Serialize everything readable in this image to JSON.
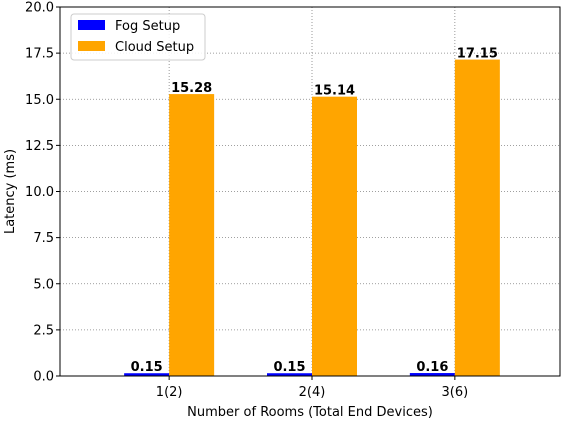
{
  "chart_data": {
    "type": "bar",
    "categories": [
      "1(2)",
      "2(4)",
      "3(6)"
    ],
    "series": [
      {
        "name": "Fog Setup",
        "color": "#0000ff",
        "values": [
          0.15,
          0.15,
          0.16
        ],
        "labels": [
          "0.15",
          "0.15",
          "0.16"
        ]
      },
      {
        "name": "Cloud Setup",
        "color": "#ffa500",
        "values": [
          15.28,
          15.14,
          17.15
        ],
        "labels": [
          "15.28",
          "15.14",
          "17.15"
        ]
      }
    ],
    "xlabel": "Number of Rooms (Total End Devices)",
    "ylabel": "Latency (ms)",
    "ylim": [
      0,
      20
    ],
    "yticks": [
      0,
      2.5,
      5,
      7.5,
      10,
      12.5,
      15,
      17.5,
      20
    ],
    "ytick_labels": [
      "0.0",
      "2.5",
      "5.0",
      "7.5",
      "10.0",
      "12.5",
      "15.0",
      "17.5",
      "20.0"
    ],
    "grid": true,
    "legend_position": "upper-left"
  }
}
